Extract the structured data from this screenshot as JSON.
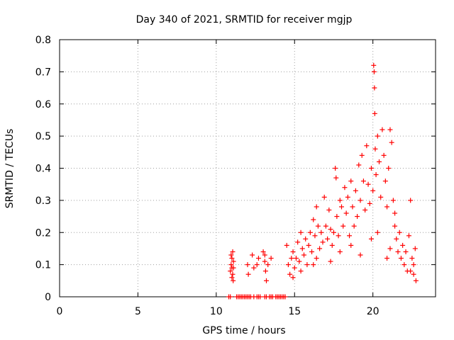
{
  "chart_data": {
    "type": "scatter",
    "title": "Day 340 of 2021, SRMTID for receiver mgjp",
    "xlabel": "GPS time / hours",
    "ylabel": "SRMTID / TECUs",
    "xlim": [
      0,
      24
    ],
    "ylim": [
      0,
      0.8
    ],
    "xticks": [
      0,
      5,
      10,
      15,
      20
    ],
    "xtick_labels": [
      "0",
      "5",
      "10",
      "15",
      "20"
    ],
    "yticks": [
      0,
      0.1,
      0.2,
      0.3,
      0.4,
      0.5,
      0.6,
      0.7,
      0.8
    ],
    "ytick_labels": [
      "0",
      "0.1",
      "0.2",
      "0.3",
      "0.4",
      "0.5",
      "0.6",
      "0.7",
      "0.8"
    ],
    "grid": true,
    "marker": "+",
    "color": "#ff0000",
    "series": [
      {
        "name": "SRMTID",
        "points": [
          [
            10.8,
            0.0
          ],
          [
            10.9,
            0.0
          ],
          [
            11.3,
            0.0
          ],
          [
            11.4,
            0.0
          ],
          [
            11.5,
            0.0
          ],
          [
            11.6,
            0.0
          ],
          [
            11.7,
            0.0
          ],
          [
            11.8,
            0.0
          ],
          [
            11.9,
            0.0
          ],
          [
            12.0,
            0.0
          ],
          [
            12.1,
            0.0
          ],
          [
            12.2,
            0.0
          ],
          [
            12.4,
            0.0
          ],
          [
            12.6,
            0.0
          ],
          [
            12.7,
            0.0
          ],
          [
            12.8,
            0.0
          ],
          [
            13.1,
            0.0
          ],
          [
            13.2,
            0.0
          ],
          [
            13.4,
            0.0
          ],
          [
            13.5,
            0.0
          ],
          [
            13.6,
            0.0
          ],
          [
            13.8,
            0.0
          ],
          [
            13.9,
            0.0
          ],
          [
            14.0,
            0.0
          ],
          [
            14.1,
            0.0
          ],
          [
            14.2,
            0.0
          ],
          [
            14.3,
            0.0
          ],
          [
            14.4,
            0.0
          ],
          [
            10.9,
            0.08
          ],
          [
            10.95,
            0.1
          ],
          [
            11.0,
            0.12
          ],
          [
            11.05,
            0.14
          ],
          [
            11.0,
            0.06
          ],
          [
            11.1,
            0.09
          ],
          [
            10.95,
            0.13
          ],
          [
            11.05,
            0.07
          ],
          [
            11.1,
            0.11
          ],
          [
            11.0,
            0.09
          ],
          [
            11.08,
            0.05
          ],
          [
            12.0,
            0.1
          ],
          [
            12.05,
            0.07
          ],
          [
            12.3,
            0.13
          ],
          [
            12.4,
            0.09
          ],
          [
            12.6,
            0.1
          ],
          [
            12.7,
            0.12
          ],
          [
            13.0,
            0.14
          ],
          [
            13.1,
            0.11
          ],
          [
            13.15,
            0.08
          ],
          [
            13.2,
            0.05
          ],
          [
            13.1,
            0.13
          ],
          [
            13.3,
            0.1
          ],
          [
            13.5,
            0.12
          ],
          [
            14.5,
            0.16
          ],
          [
            14.6,
            0.1
          ],
          [
            14.7,
            0.07
          ],
          [
            14.8,
            0.12
          ],
          [
            14.9,
            0.14
          ],
          [
            15.0,
            0.09
          ],
          [
            15.1,
            0.12
          ],
          [
            15.2,
            0.17
          ],
          [
            15.3,
            0.11
          ],
          [
            15.4,
            0.08
          ],
          [
            15.5,
            0.15
          ],
          [
            15.6,
            0.13
          ],
          [
            15.7,
            0.18
          ],
          [
            15.8,
            0.1
          ],
          [
            15.9,
            0.16
          ],
          [
            16.0,
            0.2
          ],
          [
            16.1,
            0.14
          ],
          [
            16.2,
            0.24
          ],
          [
            16.3,
            0.19
          ],
          [
            16.4,
            0.28
          ],
          [
            16.5,
            0.22
          ],
          [
            16.6,
            0.15
          ],
          [
            16.7,
            0.2
          ],
          [
            16.8,
            0.17
          ],
          [
            16.9,
            0.31
          ],
          [
            17.0,
            0.22
          ],
          [
            17.1,
            0.18
          ],
          [
            17.2,
            0.27
          ],
          [
            17.3,
            0.21
          ],
          [
            17.4,
            0.16
          ],
          [
            17.5,
            0.2
          ],
          [
            17.6,
            0.4
          ],
          [
            17.65,
            0.37
          ],
          [
            17.7,
            0.25
          ],
          [
            17.8,
            0.19
          ],
          [
            17.9,
            0.3
          ],
          [
            18.0,
            0.28
          ],
          [
            18.1,
            0.22
          ],
          [
            18.2,
            0.34
          ],
          [
            18.3,
            0.26
          ],
          [
            18.4,
            0.31
          ],
          [
            18.5,
            0.19
          ],
          [
            18.6,
            0.36
          ],
          [
            18.7,
            0.28
          ],
          [
            18.8,
            0.22
          ],
          [
            18.9,
            0.33
          ],
          [
            19.0,
            0.25
          ],
          [
            19.1,
            0.41
          ],
          [
            19.2,
            0.3
          ],
          [
            19.3,
            0.44
          ],
          [
            19.4,
            0.36
          ],
          [
            19.5,
            0.27
          ],
          [
            19.6,
            0.47
          ],
          [
            19.7,
            0.35
          ],
          [
            19.8,
            0.29
          ],
          [
            19.9,
            0.4
          ],
          [
            20.0,
            0.33
          ],
          [
            20.05,
            0.72
          ],
          [
            20.08,
            0.7
          ],
          [
            20.1,
            0.65
          ],
          [
            20.12,
            0.57
          ],
          [
            20.15,
            0.46
          ],
          [
            20.2,
            0.38
          ],
          [
            20.3,
            0.5
          ],
          [
            20.4,
            0.42
          ],
          [
            20.5,
            0.31
          ],
          [
            20.6,
            0.52
          ],
          [
            20.7,
            0.44
          ],
          [
            20.8,
            0.36
          ],
          [
            20.9,
            0.28
          ],
          [
            21.0,
            0.4
          ],
          [
            21.1,
            0.52
          ],
          [
            21.2,
            0.48
          ],
          [
            21.3,
            0.3
          ],
          [
            21.4,
            0.22
          ],
          [
            21.5,
            0.18
          ],
          [
            21.6,
            0.14
          ],
          [
            21.7,
            0.2
          ],
          [
            21.8,
            0.12
          ],
          [
            21.9,
            0.16
          ],
          [
            22.0,
            0.1
          ],
          [
            22.1,
            0.14
          ],
          [
            22.2,
            0.08
          ],
          [
            22.3,
            0.19
          ],
          [
            22.4,
            0.3
          ],
          [
            22.5,
            0.12
          ],
          [
            22.6,
            0.07
          ],
          [
            22.7,
            0.15
          ],
          [
            22.75,
            0.05
          ],
          [
            22.6,
            0.1
          ],
          [
            22.4,
            0.08
          ],
          [
            16.4,
            0.12
          ],
          [
            17.9,
            0.14
          ],
          [
            18.6,
            0.16
          ],
          [
            19.2,
            0.13
          ],
          [
            20.3,
            0.2
          ],
          [
            20.9,
            0.12
          ],
          [
            21.4,
            0.26
          ],
          [
            21.1,
            0.15
          ],
          [
            19.9,
            0.18
          ],
          [
            17.3,
            0.11
          ],
          [
            16.2,
            0.1
          ],
          [
            15.4,
            0.2
          ],
          [
            14.9,
            0.06
          ]
        ]
      }
    ]
  }
}
